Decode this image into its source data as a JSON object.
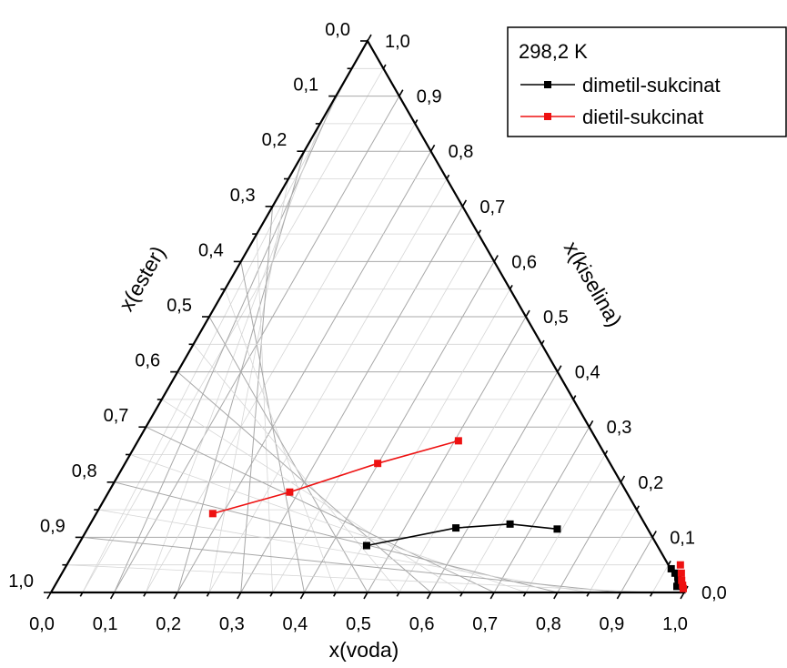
{
  "chart_data": {
    "type": "ternary",
    "axes": {
      "bottom": {
        "label": "x(voda)",
        "ticks": [
          "0,0",
          "0,1",
          "0,2",
          "0,3",
          "0,4",
          "0,5",
          "0,6",
          "0,7",
          "0,8",
          "0,9",
          "1,0"
        ]
      },
      "left": {
        "label": "x(ester)",
        "ticks": [
          "0,0",
          "0,1",
          "0,2",
          "0,3",
          "0,4",
          "0,5",
          "0,6",
          "0,7",
          "0,8",
          "0,9",
          "1,0"
        ]
      },
      "right": {
        "label": "x(kiselina)",
        "ticks": [
          "0,0",
          "0,1",
          "0,2",
          "0,3",
          "0,4",
          "0,5",
          "0,6",
          "0,7",
          "0,8",
          "0,9",
          "1,0"
        ]
      }
    },
    "grid": true,
    "legend": {
      "placement": "top-right",
      "title": "298,2 K",
      "entries": [
        "dimetil-sukcinat",
        "dietil-sukcinat"
      ]
    },
    "series": [
      {
        "name": "dimetil-sukcinat",
        "color": "#000000",
        "lines": [
          [
            {
              "voda": 0.456,
              "kiselina": 0.085
            },
            {
              "voda": 0.581,
              "kiselina": 0.117
            },
            {
              "voda": 0.663,
              "kiselina": 0.124
            },
            {
              "voda": 0.742,
              "kiselina": 0.115
            }
          ]
        ],
        "points": [
          {
            "voda": 0.958,
            "kiselina": 0.043
          },
          {
            "voda": 0.968,
            "kiselina": 0.035
          },
          {
            "voda": 0.976,
            "kiselina": 0.028
          },
          {
            "voda": 0.981,
            "kiselina": 0.019
          },
          {
            "voda": 0.983,
            "kiselina": 0.011
          }
        ]
      },
      {
        "name": "dietil-sukcinat",
        "color": "#ee1111",
        "lines": [
          [
            {
              "voda": 0.184,
              "kiselina": 0.143
            },
            {
              "voda": 0.286,
              "kiselina": 0.182
            },
            {
              "voda": 0.399,
              "kiselina": 0.234
            },
            {
              "voda": 0.506,
              "kiselina": 0.275
            }
          ]
        ],
        "points": [
          {
            "voda": 0.969,
            "kiselina": 0.05
          },
          {
            "voda": 0.978,
            "kiselina": 0.035
          },
          {
            "voda": 0.985,
            "kiselina": 0.022
          },
          {
            "voda": 0.991,
            "kiselina": 0.013
          },
          {
            "voda": 0.995,
            "kiselina": 0.007
          }
        ]
      }
    ]
  }
}
